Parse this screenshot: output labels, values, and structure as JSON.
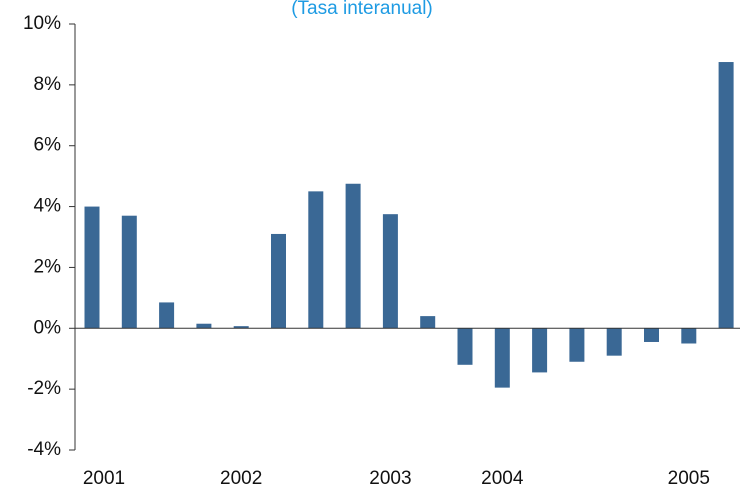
{
  "chart_data": {
    "type": "bar",
    "title": "(Tasa interanual)",
    "categories": [
      "2001",
      null,
      null,
      null,
      "2002",
      null,
      null,
      null,
      "2003",
      null,
      null,
      "2004",
      null,
      null,
      null,
      null,
      "2005",
      null
    ],
    "values": [
      4.0,
      3.7,
      0.85,
      0.15,
      0.07,
      3.1,
      4.5,
      4.75,
      3.75,
      0.4,
      -1.2,
      -1.95,
      -1.45,
      -1.1,
      -0.9,
      -0.45,
      -0.5,
      8.75
    ],
    "color": "#3a6895",
    "ylim": [
      -4,
      10
    ],
    "yticks": [
      {
        "value": -4,
        "label": "-4%"
      },
      {
        "value": -2,
        "label": "-2%"
      },
      {
        "value": 0,
        "label": "0%"
      },
      {
        "value": 2,
        "label": "2%"
      },
      {
        "value": 4,
        "label": "4%"
      },
      {
        "value": 6,
        "label": "6%"
      },
      {
        "value": 8,
        "label": "8%"
      },
      {
        "value": 10,
        "label": "10%"
      }
    ],
    "grid": false
  }
}
